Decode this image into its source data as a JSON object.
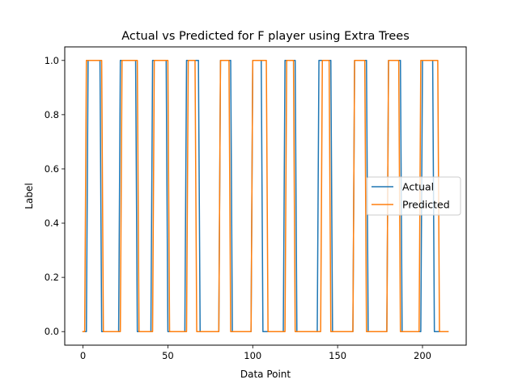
{
  "chart_data": {
    "type": "line",
    "title": "Actual vs Predicted for F player using Extra Trees",
    "xlabel": "Data Point",
    "ylabel": "Label",
    "xlim": [
      -10.75,
      225.75
    ],
    "ylim": [
      -0.05,
      1.05
    ],
    "xticks": [
      0,
      50,
      100,
      150,
      200
    ],
    "yticks": [
      0.0,
      0.2,
      0.4,
      0.6,
      0.8,
      1.0
    ],
    "xtick_labels": [
      "0",
      "50",
      "100",
      "150",
      "200"
    ],
    "ytick_labels": [
      "0.0",
      "0.2",
      "0.4",
      "0.6",
      "0.8",
      "1.0"
    ],
    "grid": false,
    "legend_position": "center-right",
    "series": [
      {
        "name": "Actual",
        "color": "#1f77b4",
        "x": [
          0,
          1,
          2,
          3,
          10,
          11,
          21,
          22,
          31,
          32,
          40,
          41,
          49,
          50,
          60,
          61,
          68,
          69,
          80,
          81,
          87,
          88,
          99,
          100,
          105,
          106,
          118,
          119,
          125,
          126,
          138,
          139,
          146,
          147,
          159,
          160,
          167,
          168,
          179,
          180,
          187,
          188,
          199,
          200,
          206,
          207,
          215
        ],
        "y": [
          0,
          0,
          0,
          1,
          1,
          0,
          0,
          1,
          1,
          0,
          0,
          1,
          1,
          0,
          0,
          1,
          1,
          0,
          0,
          1,
          1,
          0,
          0,
          1,
          1,
          0,
          0,
          1,
          1,
          0,
          0,
          1,
          1,
          0,
          0,
          1,
          1,
          0,
          0,
          1,
          1,
          0,
          0,
          1,
          1,
          0,
          0
        ]
      },
      {
        "name": "Predicted",
        "color": "#ff7f0e",
        "x": [
          0,
          1,
          2,
          11,
          12,
          22,
          23,
          32,
          33,
          41,
          42,
          50,
          51,
          61,
          62,
          66,
          67,
          80,
          81,
          86,
          87,
          99,
          100,
          108,
          109,
          119,
          120,
          124,
          125,
          140,
          141,
          145,
          146,
          159,
          160,
          166,
          167,
          179,
          180,
          186,
          187,
          198,
          199,
          209,
          210,
          215
        ],
        "y": [
          0,
          0,
          1,
          1,
          0,
          0,
          1,
          1,
          0,
          0,
          1,
          1,
          0,
          0,
          1,
          1,
          0,
          0,
          1,
          1,
          0,
          0,
          1,
          1,
          0,
          0,
          1,
          1,
          0,
          0,
          1,
          1,
          0,
          0,
          1,
          1,
          0,
          0,
          1,
          1,
          0,
          0,
          1,
          1,
          0,
          0
        ]
      }
    ]
  }
}
